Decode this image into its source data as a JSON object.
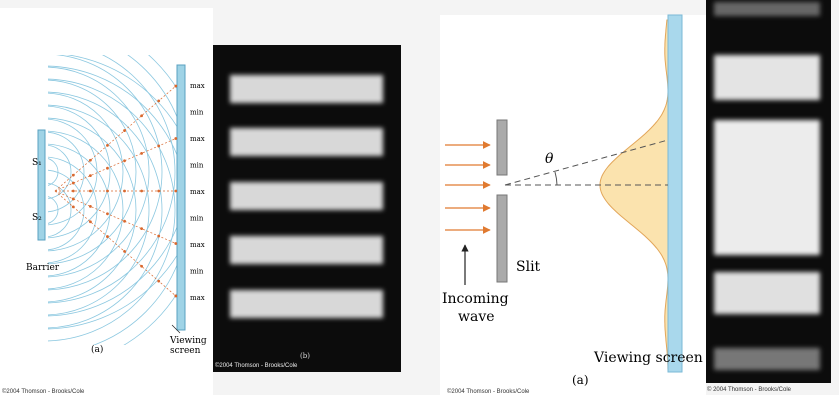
{
  "panel_a": {
    "screen_labels": [
      "max",
      "min",
      "max",
      "min",
      "max",
      "min",
      "max",
      "min",
      "max"
    ],
    "source_labels": [
      "S₁",
      "S₂"
    ],
    "barrier_label": "Barrier",
    "screen_label_lines": [
      "Viewing",
      "screen"
    ],
    "caption": "(a)",
    "credit": "©2004 Thomson - Brooks/Cole"
  },
  "panel_b": {
    "caption": "(b)",
    "credit": "©2004 Thomson - Brooks/Cole"
  },
  "panel_c": {
    "angle_label": "θ",
    "slit_label": "Slit",
    "wave_label_lines": [
      "Incoming",
      "wave"
    ],
    "screen_label": "Viewing screen",
    "caption": "(a)",
    "credit": "©2004 Thomson - Brooks/Cole"
  },
  "panel_d": {
    "credit": "© 2004 Thomson - Brooks/Cole"
  }
}
